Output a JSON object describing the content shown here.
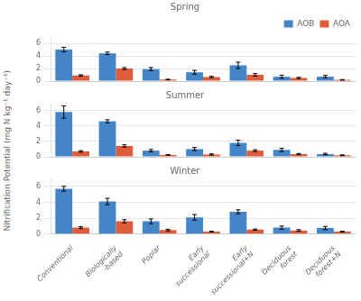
{
  "chart_data": [
    {
      "type": "bar",
      "title": "Spring",
      "categories": [
        "Conventional",
        "Biologically\n-based",
        "Poplar",
        "Early\nsuccessional",
        "Early\nsuccessional+N",
        "Deciduous\nforest",
        "Deciduous\nforest+N"
      ],
      "series": [
        {
          "name": "AOB",
          "color": "#4485c8",
          "values": [
            5.0,
            4.4,
            1.9,
            1.4,
            2.5,
            0.7,
            0.7
          ],
          "errors": [
            0.35,
            0.2,
            0.25,
            0.3,
            0.5,
            0.25,
            0.2
          ]
        },
        {
          "name": "AOA",
          "color": "#e05c38",
          "values": [
            0.9,
            2.0,
            0.25,
            0.65,
            1.0,
            0.5,
            0.2
          ],
          "errors": [
            0.1,
            0.15,
            0.05,
            0.1,
            0.2,
            0.1,
            0.05
          ]
        }
      ],
      "ylim": [
        0,
        7
      ],
      "yticks": [
        0,
        2,
        4,
        6
      ],
      "grid": true,
      "legend": "upper right",
      "tick_labels": "y"
    },
    {
      "type": "bar",
      "title": "Summer",
      "ylabel": "Nitrification Potential (mg N kg⁻¹ day⁻¹)",
      "categories": [
        "Conventional",
        "Biologically\n-based",
        "Poplar",
        "Early\nsuccessional",
        "Early\nsuccessional+N",
        "Deciduous\nforest",
        "Deciduous\nforest+N"
      ],
      "series": [
        {
          "name": "AOB",
          "color": "#4485c8",
          "values": [
            5.8,
            4.6,
            0.8,
            1.0,
            1.8,
            0.9,
            0.35
          ],
          "errors": [
            0.8,
            0.2,
            0.15,
            0.2,
            0.35,
            0.2,
            0.1
          ]
        },
        {
          "name": "AOA",
          "color": "#e05c38",
          "values": [
            0.7,
            1.4,
            0.25,
            0.3,
            0.8,
            0.35,
            0.2
          ],
          "errors": [
            0.1,
            0.15,
            0.05,
            0.08,
            0.12,
            0.08,
            0.05
          ]
        }
      ],
      "ylim": [
        0,
        7
      ],
      "yticks": [
        0,
        2,
        4,
        6
      ],
      "grid": true,
      "tick_labels": "y"
    },
    {
      "type": "bar",
      "title": "Winter",
      "categories": [
        "Conventional",
        "Biologically\n-based",
        "Poplar",
        "Early\nsuccessional",
        "Early\nsuccessional+N",
        "Deciduous\nforest",
        "Deciduous\nforest+N"
      ],
      "series": [
        {
          "name": "AOB",
          "color": "#4485c8",
          "values": [
            5.7,
            4.1,
            1.6,
            2.1,
            2.8,
            0.8,
            0.75
          ],
          "errors": [
            0.3,
            0.4,
            0.3,
            0.35,
            0.25,
            0.2,
            0.2
          ]
        },
        {
          "name": "AOA",
          "color": "#e05c38",
          "values": [
            0.8,
            1.6,
            0.5,
            0.3,
            0.55,
            0.45,
            0.3
          ],
          "errors": [
            0.12,
            0.2,
            0.1,
            0.05,
            0.08,
            0.1,
            0.06
          ]
        }
      ],
      "ylim": [
        0,
        7
      ],
      "yticks": [
        0,
        2,
        4,
        6
      ],
      "grid": true
    }
  ]
}
